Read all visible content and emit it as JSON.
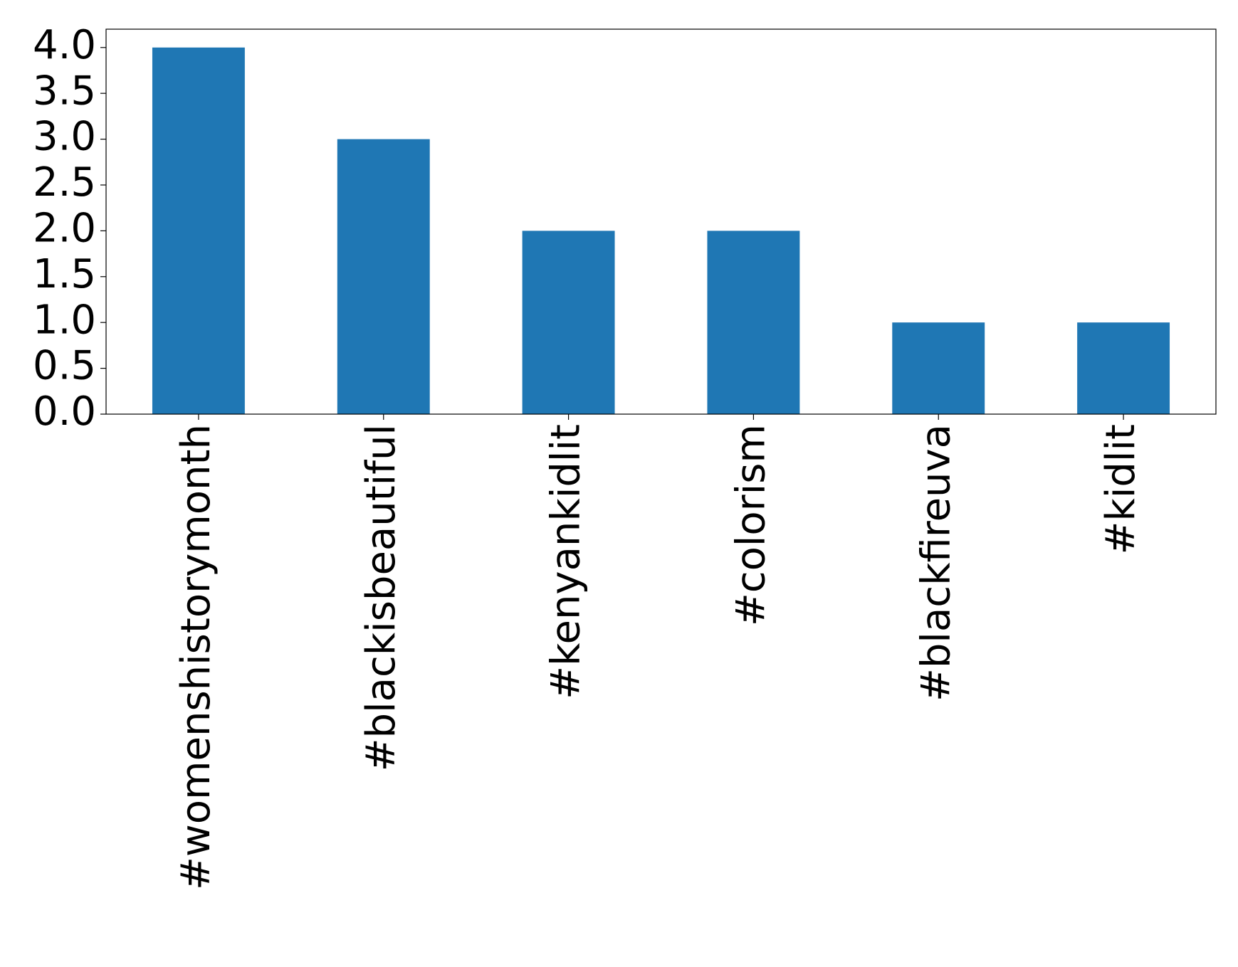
{
  "chart_data": {
    "type": "bar",
    "categories": [
      "#womenshistorymonth",
      "#blackisbeautiful",
      "#kenyankidlit",
      "#colorism",
      "#blackfireuva",
      "#kidlit"
    ],
    "values": [
      4,
      3,
      2,
      2,
      1,
      1
    ],
    "color": "#1f77b4",
    "ylim": [
      0,
      4.2
    ],
    "yticks": [
      {
        "value": 0,
        "label": "0.0"
      },
      0.5,
      {
        "value": 1,
        "label": "1.0"
      },
      1.5,
      {
        "value": 2,
        "label": "2.0"
      },
      2.5,
      {
        "value": 3,
        "label": "3.0"
      },
      3.5,
      {
        "value": 4,
        "label": "4.0"
      }
    ],
    "grid": false
  }
}
